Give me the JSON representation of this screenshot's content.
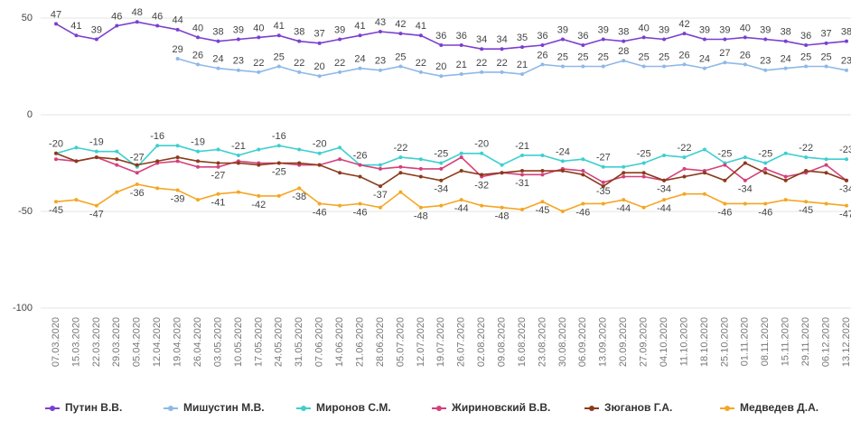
{
  "chart_data": {
    "type": "line",
    "categories": [
      "07.03.2020",
      "15.03.2020",
      "22.03.2020",
      "29.03.2020",
      "05.04.2020",
      "12.04.2020",
      "19.04.2020",
      "26.04.2020",
      "03.05.2020",
      "10.05.2020",
      "17.05.2020",
      "24.05.2020",
      "31.05.2020",
      "07.06.2020",
      "14.06.2020",
      "21.06.2020",
      "28.06.2020",
      "05.07.2020",
      "12.07.2020",
      "19.07.2020",
      "26.07.2020",
      "02.08.2020",
      "09.08.2020",
      "16.08.2020",
      "23.08.2020",
      "30.08.2020",
      "06.09.2020",
      "13.09.2020",
      "20.09.2020",
      "27.09.2020",
      "04.10.2020",
      "11.10.2020",
      "18.10.2020",
      "25.10.2020",
      "01.11.2020",
      "08.11.2020",
      "15.11.2020",
      "29.11.2020",
      "06.12.2020",
      "13.12.2020"
    ],
    "ylim": [
      -100,
      50
    ],
    "yticks": [
      -100,
      -50,
      0,
      50
    ],
    "grid": true,
    "legend": "bottom",
    "series": [
      {
        "name": "Путин В.В.",
        "color": "#7b3fd0",
        "values": [
          47,
          41,
          39,
          46,
          48,
          46,
          44,
          40,
          38,
          39,
          40,
          41,
          38,
          37,
          39,
          41,
          43,
          42,
          41,
          36,
          36,
          34,
          34,
          35,
          36,
          39,
          36,
          39,
          38,
          40,
          39,
          42,
          39,
          39,
          40,
          39,
          38,
          36,
          37,
          38
        ],
        "value_labels": [
          "47",
          "41",
          "39",
          "46",
          "48",
          "46",
          "44",
          "40",
          "38",
          "39",
          "40",
          "41",
          "38",
          "37",
          "39",
          "41",
          "43",
          "42",
          "41",
          "36",
          "36",
          "34",
          "34",
          "35",
          "36",
          "39",
          "36",
          "39",
          "38",
          "40",
          "39",
          "42",
          "39",
          "39",
          "40",
          "39",
          "38",
          "36",
          "37",
          "38"
        ]
      },
      {
        "name": "Мишустин М.В.",
        "color": "#8fb8e8",
        "values": [
          null,
          null,
          null,
          null,
          null,
          null,
          29,
          26,
          24,
          23,
          22,
          25,
          22,
          20,
          22,
          24,
          23,
          25,
          22,
          20,
          21,
          22,
          22,
          21,
          26,
          25,
          25,
          25,
          28,
          25,
          25,
          26,
          24,
          27,
          26,
          23,
          24,
          25,
          25,
          23
        ],
        "value_labels": [
          null,
          null,
          null,
          null,
          null,
          null,
          "29",
          "26",
          "24",
          "23",
          "22",
          "25",
          "22",
          "20",
          "22",
          "24",
          "23",
          "25",
          "22",
          "20",
          "21",
          "22",
          "22",
          "21",
          "26",
          "25",
          "25",
          "25",
          "28",
          "25",
          "25",
          "26",
          "24",
          "27",
          "26",
          "23",
          "24",
          "25",
          "25",
          "23"
        ]
      },
      {
        "name": "Миронов С.М.",
        "color": "#3ecfcf",
        "values": [
          -20,
          -17,
          -19,
          -19,
          -27,
          -16,
          -16,
          -19,
          -18,
          -21,
          -18,
          -16,
          -18,
          -20,
          -17,
          -26,
          -26,
          -22,
          -23,
          -25,
          -20,
          -20,
          -26,
          -21,
          -21,
          -24,
          -23,
          -27,
          -27,
          -25,
          -21,
          -22,
          -18,
          -25,
          -22,
          -25,
          -20,
          -22,
          -23,
          -23
        ],
        "value_labels": [
          "-20",
          null,
          "-19",
          null,
          "-27",
          "-16",
          null,
          "-19",
          null,
          "-21",
          null,
          "-16",
          null,
          "-20",
          null,
          "-26",
          null,
          "-22",
          null,
          "-25",
          null,
          "-20",
          null,
          "-21",
          null,
          "-24",
          null,
          "-27",
          null,
          "-25",
          null,
          "-22",
          null,
          "-25",
          null,
          "-25",
          null,
          "-22",
          null,
          "-23"
        ]
      },
      {
        "name": "Жириновский В.В.",
        "color": "#d4417a",
        "values": [
          -23,
          -24,
          -22,
          -26,
          -30,
          -25,
          -24,
          -27,
          -27,
          -24,
          -25,
          -25,
          -26,
          -26,
          -23,
          -26,
          -28,
          -27,
          -28,
          -28,
          -22,
          -32,
          -30,
          -31,
          -31,
          -28,
          -29,
          -35,
          -32,
          -32,
          -34,
          -28,
          -29,
          -26,
          -34,
          -28,
          -32,
          -30,
          -26,
          -34
        ],
        "value_labels": [
          null,
          null,
          null,
          null,
          null,
          null,
          null,
          null,
          "-27",
          null,
          null,
          "-25",
          null,
          null,
          null,
          null,
          null,
          null,
          null,
          null,
          null,
          "-32",
          null,
          "-31",
          null,
          null,
          null,
          "-35",
          null,
          null,
          "-34",
          null,
          null,
          null,
          "-34",
          null,
          null,
          null,
          null,
          "-34"
        ]
      },
      {
        "name": "Зюганов Г.А.",
        "color": "#8b3a1a",
        "values": [
          -20,
          -24,
          -22,
          -23,
          -26,
          -24,
          -22,
          -24,
          -25,
          -25,
          -26,
          -25,
          -25,
          -26,
          -30,
          -32,
          -37,
          -30,
          -32,
          -34,
          -29,
          -31,
          -30,
          -29,
          -29,
          -29,
          -31,
          -37,
          -30,
          -30,
          -34,
          -32,
          -30,
          -34,
          -25,
          -30,
          -34,
          -29,
          -30,
          -34
        ],
        "value_labels": [
          null,
          null,
          null,
          null,
          null,
          null,
          null,
          null,
          null,
          null,
          null,
          null,
          null,
          null,
          null,
          null,
          "-37",
          null,
          null,
          "-34",
          null,
          null,
          null,
          null,
          null,
          null,
          null,
          null,
          null,
          null,
          null,
          null,
          null,
          null,
          null,
          null,
          null,
          null,
          null,
          null
        ]
      },
      {
        "name": "Медведев Д.А.",
        "color": "#f5a623",
        "values": [
          -45,
          -44,
          -47,
          -40,
          -36,
          -38,
          -39,
          -44,
          -41,
          -40,
          -42,
          -42,
          -38,
          -46,
          -47,
          -46,
          -48,
          -40,
          -48,
          -47,
          -44,
          -47,
          -48,
          -49,
          -45,
          -50,
          -46,
          -46,
          -44,
          -48,
          -44,
          -41,
          -41,
          -46,
          -46,
          -46,
          -44,
          -45,
          -46,
          -47
        ],
        "value_labels": [
          "-45",
          null,
          "-47",
          null,
          "-36",
          null,
          "-39",
          null,
          "-41",
          null,
          "-42",
          null,
          "-38",
          "-46",
          null,
          "-46",
          null,
          null,
          "-48",
          null,
          "-44",
          null,
          "-48",
          null,
          "-45",
          null,
          "-46",
          null,
          "-44",
          null,
          "-44",
          null,
          null,
          "-46",
          null,
          "-46",
          null,
          "-45",
          null,
          "-47"
        ]
      }
    ]
  }
}
